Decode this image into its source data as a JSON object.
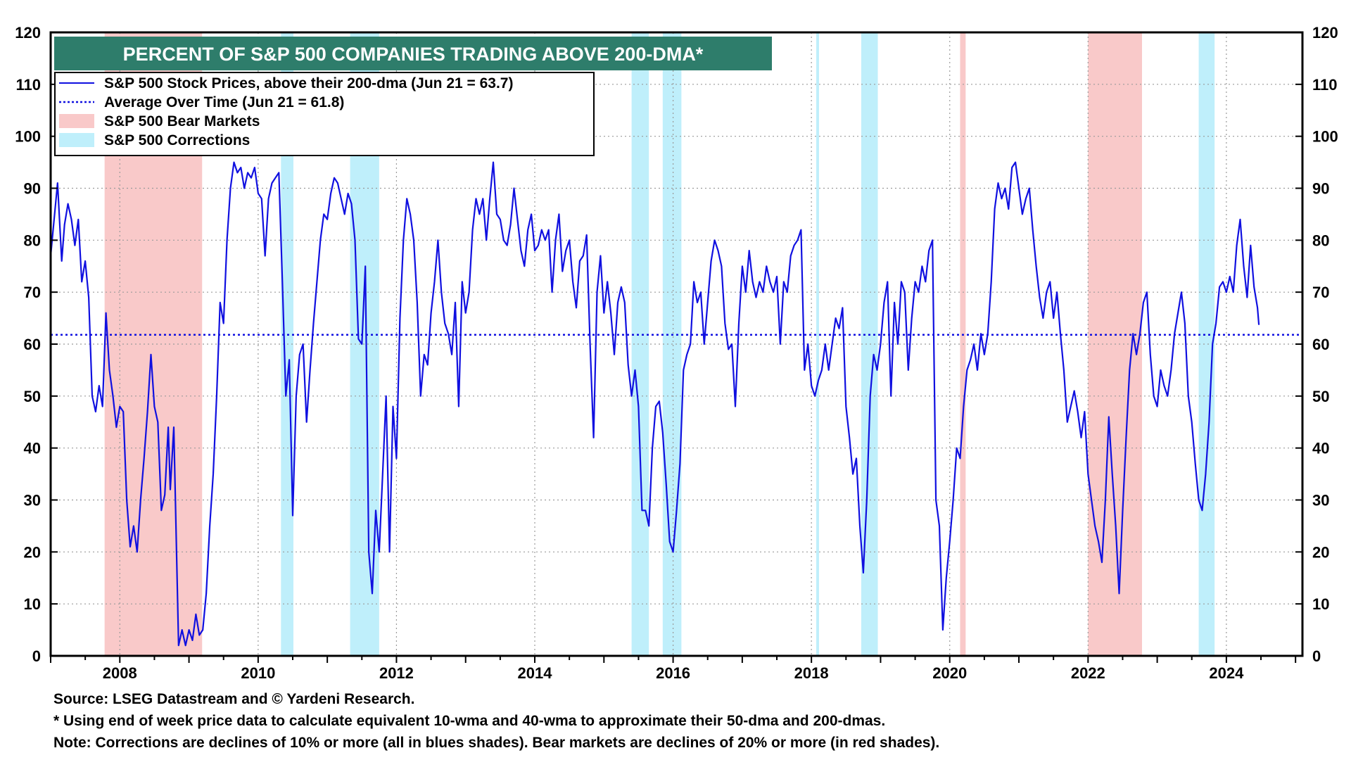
{
  "chart_data": {
    "type": "line",
    "title": "PERCENT OF S&P 500 COMPANIES TRADING ABOVE 200-DMA*",
    "ylim": [
      0,
      120
    ],
    "xlim": [
      2007.0,
      2025.1
    ],
    "y_ticks": [
      0,
      10,
      20,
      30,
      40,
      50,
      60,
      70,
      80,
      90,
      100,
      110,
      120
    ],
    "x_ticks": [
      2008,
      2010,
      2012,
      2014,
      2016,
      2018,
      2020,
      2022,
      2024
    ],
    "grid": true,
    "legend_position": "top-left",
    "legend": [
      {
        "label": "S&P 500 Stock Prices, above their 200-dma (Jun 21 = 63.7)",
        "style": "solid-line",
        "color": "#1010e0"
      },
      {
        "label": "Average Over Time (Jun 21 = 61.8)",
        "style": "dotted-line",
        "color": "#1010e0"
      },
      {
        "label": "S&P 500 Bear Markets",
        "style": "swatch",
        "color": "#f9c9c9"
      },
      {
        "label": "S&P 500 Corrections",
        "style": "swatch",
        "color": "#bfeffb"
      }
    ],
    "average_line": 61.8,
    "bear_markets": [
      [
        2007.78,
        2009.19
      ],
      [
        2020.15,
        2020.23
      ],
      [
        2022.0,
        2022.78
      ]
    ],
    "corrections": [
      [
        2010.33,
        2010.51
      ],
      [
        2011.33,
        2011.75
      ],
      [
        2015.4,
        2015.65
      ],
      [
        2015.85,
        2016.12
      ],
      [
        2018.07,
        2018.11
      ],
      [
        2018.72,
        2018.96
      ],
      [
        2023.6,
        2023.83
      ]
    ],
    "series": [
      {
        "name": "S&P 500 Stock Prices, above their 200-dma",
        "color": "#1010e0",
        "x": [
          2007.0,
          2007.05,
          2007.1,
          2007.16,
          2007.2,
          2007.25,
          2007.3,
          2007.35,
          2007.4,
          2007.45,
          2007.5,
          2007.55,
          2007.6,
          2007.65,
          2007.7,
          2007.75,
          2007.8,
          2007.85,
          2007.9,
          2007.95,
          2008.0,
          2008.05,
          2008.1,
          2008.15,
          2008.2,
          2008.25,
          2008.3,
          2008.35,
          2008.4,
          2008.45,
          2008.5,
          2008.55,
          2008.6,
          2008.65,
          2008.7,
          2008.73,
          2008.78,
          2008.85,
          2008.9,
          2008.95,
          2009.0,
          2009.05,
          2009.1,
          2009.15,
          2009.2,
          2009.25,
          2009.3,
          2009.35,
          2009.4,
          2009.45,
          2009.5,
          2009.55,
          2009.6,
          2009.65,
          2009.7,
          2009.75,
          2009.8,
          2009.85,
          2009.9,
          2009.95,
          2010.0,
          2010.05,
          2010.1,
          2010.15,
          2010.2,
          2010.25,
          2010.3,
          2010.35,
          2010.4,
          2010.45,
          2010.5,
          2010.55,
          2010.6,
          2010.65,
          2010.7,
          2010.75,
          2010.8,
          2010.85,
          2010.9,
          2010.95,
          2011.0,
          2011.05,
          2011.1,
          2011.15,
          2011.2,
          2011.25,
          2011.3,
          2011.35,
          2011.4,
          2011.45,
          2011.5,
          2011.55,
          2011.6,
          2011.65,
          2011.7,
          2011.75,
          2011.8,
          2011.85,
          2011.9,
          2011.95,
          2012.0,
          2012.05,
          2012.1,
          2012.15,
          2012.2,
          2012.25,
          2012.3,
          2012.35,
          2012.4,
          2012.45,
          2012.5,
          2012.55,
          2012.6,
          2012.65,
          2012.7,
          2012.75,
          2012.8,
          2012.85,
          2012.9,
          2012.95,
          2013.0,
          2013.05,
          2013.1,
          2013.15,
          2013.2,
          2013.25,
          2013.3,
          2013.35,
          2013.4,
          2013.45,
          2013.5,
          2013.55,
          2013.6,
          2013.65,
          2013.7,
          2013.75,
          2013.8,
          2013.85,
          2013.9,
          2013.95,
          2014.0,
          2014.05,
          2014.1,
          2014.15,
          2014.2,
          2014.25,
          2014.3,
          2014.35,
          2014.4,
          2014.45,
          2014.5,
          2014.55,
          2014.6,
          2014.65,
          2014.7,
          2014.75,
          2014.8,
          2014.85,
          2014.9,
          2014.95,
          2015.0,
          2015.05,
          2015.1,
          2015.15,
          2015.2,
          2015.25,
          2015.3,
          2015.35,
          2015.4,
          2015.45,
          2015.5,
          2015.55,
          2015.6,
          2015.65,
          2015.7,
          2015.75,
          2015.8,
          2015.85,
          2015.9,
          2015.95,
          2016.0,
          2016.05,
          2016.1,
          2016.15,
          2016.2,
          2016.25,
          2016.3,
          2016.35,
          2016.4,
          2016.45,
          2016.5,
          2016.55,
          2016.6,
          2016.65,
          2016.7,
          2016.75,
          2016.8,
          2016.85,
          2016.9,
          2016.95,
          2017.0,
          2017.05,
          2017.1,
          2017.15,
          2017.2,
          2017.25,
          2017.3,
          2017.35,
          2017.4,
          2017.45,
          2017.5,
          2017.55,
          2017.6,
          2017.65,
          2017.7,
          2017.75,
          2017.8,
          2017.85,
          2017.9,
          2017.95,
          2018.0,
          2018.05,
          2018.1,
          2018.15,
          2018.2,
          2018.25,
          2018.3,
          2018.35,
          2018.4,
          2018.45,
          2018.5,
          2018.55,
          2018.6,
          2018.65,
          2018.7,
          2018.75,
          2018.8,
          2018.85,
          2018.9,
          2018.95,
          2019.0,
          2019.05,
          2019.1,
          2019.15,
          2019.2,
          2019.25,
          2019.3,
          2019.35,
          2019.4,
          2019.45,
          2019.5,
          2019.55,
          2019.6,
          2019.65,
          2019.7,
          2019.75,
          2019.8,
          2019.85,
          2019.9,
          2019.95,
          2020.0,
          2020.05,
          2020.1,
          2020.15,
          2020.2,
          2020.25,
          2020.3,
          2020.35,
          2020.4,
          2020.45,
          2020.5,
          2020.55,
          2020.6,
          2020.65,
          2020.7,
          2020.75,
          2020.8,
          2020.85,
          2020.9,
          2020.95,
          2021.0,
          2021.05,
          2021.1,
          2021.15,
          2021.2,
          2021.25,
          2021.3,
          2021.35,
          2021.4,
          2021.45,
          2021.5,
          2021.55,
          2021.6,
          2021.65,
          2021.7,
          2021.75,
          2021.8,
          2021.85,
          2021.9,
          2021.95,
          2022.0,
          2022.05,
          2022.1,
          2022.15,
          2022.2,
          2022.25,
          2022.3,
          2022.35,
          2022.4,
          2022.45,
          2022.5,
          2022.55,
          2022.6,
          2022.65,
          2022.7,
          2022.75,
          2022.8,
          2022.85,
          2022.9,
          2022.95,
          2023.0,
          2023.05,
          2023.1,
          2023.15,
          2023.2,
          2023.25,
          2023.3,
          2023.35,
          2023.4,
          2023.45,
          2023.5,
          2023.55,
          2023.6,
          2023.65,
          2023.7,
          2023.75,
          2023.8,
          2023.85,
          2023.9,
          2023.95,
          2024.0,
          2024.05,
          2024.1,
          2024.15,
          2024.2,
          2024.25,
          2024.3,
          2024.35,
          2024.4,
          2024.45,
          2024.47
        ],
        "y": [
          77,
          84,
          91,
          76,
          83,
          87,
          84,
          79,
          84,
          72,
          76,
          69,
          50,
          47,
          52,
          48,
          66,
          55,
          50,
          44,
          48,
          47,
          30,
          21,
          25,
          20,
          30,
          38,
          47,
          58,
          48,
          45,
          28,
          31,
          44,
          32,
          44,
          2,
          5,
          2,
          5,
          3,
          8,
          4,
          5,
          12,
          25,
          35,
          50,
          68,
          64,
          80,
          90,
          95,
          93,
          94,
          90,
          93,
          92,
          94,
          89,
          88,
          77,
          88,
          91,
          92,
          93,
          72,
          50,
          57,
          27,
          50,
          58,
          60,
          45,
          55,
          64,
          72,
          80,
          85,
          84,
          89,
          92,
          91,
          88,
          85,
          89,
          87,
          80,
          61,
          60,
          75,
          20,
          12,
          28,
          20,
          35,
          50,
          20,
          48,
          38,
          65,
          80,
          88,
          85,
          80,
          68,
          50,
          58,
          56,
          66,
          72,
          80,
          70,
          64,
          62,
          58,
          68,
          48,
          72,
          66,
          70,
          82,
          88,
          85,
          88,
          80,
          88,
          95,
          85,
          84,
          80,
          79,
          83,
          90,
          84,
          78,
          75,
          82,
          85,
          78,
          79,
          82,
          80,
          82,
          70,
          80,
          85,
          74,
          78,
          80,
          72,
          67,
          76,
          77,
          81,
          60,
          42,
          70,
          77,
          66,
          72,
          66,
          58,
          68,
          71,
          68,
          56,
          50,
          55,
          48,
          28,
          28,
          25,
          40,
          48,
          49,
          43,
          33,
          22,
          20,
          28,
          37,
          55,
          58,
          60,
          72,
          68,
          70,
          60,
          68,
          76,
          80,
          78,
          75,
          64,
          59,
          60,
          48,
          64,
          75,
          70,
          78,
          72,
          69,
          72,
          70,
          75,
          72,
          70,
          73,
          60,
          72,
          70,
          77,
          79,
          80,
          82,
          55,
          60,
          52,
          50,
          53,
          55,
          60,
          55,
          60,
          65,
          63,
          67,
          48,
          42,
          35,
          38,
          25,
          16,
          30,
          50,
          58,
          55,
          60,
          68,
          72,
          50,
          68,
          60,
          72,
          70,
          55,
          65,
          72,
          70,
          75,
          72,
          78,
          80,
          30,
          25,
          5,
          15,
          22,
          30,
          40,
          38,
          48,
          55,
          57,
          60,
          55,
          62,
          58,
          62,
          72,
          86,
          91,
          88,
          90,
          86,
          94,
          95,
          90,
          85,
          88,
          90,
          82,
          75,
          69,
          65,
          70,
          72,
          65,
          70,
          62,
          55,
          45,
          48,
          51,
          47,
          42,
          47,
          35,
          30,
          25,
          22,
          18,
          30,
          46,
          35,
          25,
          12,
          28,
          42,
          55,
          62,
          58,
          62,
          68,
          70,
          58,
          50,
          48,
          55,
          52,
          50,
          55,
          62,
          66,
          70,
          64,
          50,
          45,
          37,
          30,
          28,
          35,
          45,
          60,
          64,
          71,
          72,
          70,
          73,
          70,
          79,
          84,
          75,
          69,
          79,
          71,
          67,
          63.7
        ]
      }
    ]
  },
  "axes": {
    "y_left_labels": [
      "0",
      "10",
      "20",
      "30",
      "40",
      "50",
      "60",
      "70",
      "80",
      "90",
      "100",
      "110",
      "120"
    ],
    "y_right_labels": [
      "0",
      "10",
      "20",
      "30",
      "40",
      "50",
      "60",
      "70",
      "80",
      "90",
      "100",
      "110",
      "120"
    ],
    "x_labels": [
      "2008",
      "2010",
      "2012",
      "2014",
      "2016",
      "2018",
      "2020",
      "2022",
      "2024"
    ]
  },
  "footnotes": {
    "source": "Source: LSEG Datastream and © Yardeni Research.",
    "method": "* Using end of week price data to calculate equivalent 10-wma and 40-wma to approximate their 50-dma and 200-dmas.",
    "note": "Note: Corrections are declines of 10% or more (all in blues shades). Bear markets are declines of 20% or more (in red shades)."
  },
  "colors": {
    "title_bg": "#2e7d6b",
    "line": "#1010e0",
    "bear_shade": "#f9c9c9",
    "correction_shade": "#bfeffb",
    "grid": "#9a9a9a"
  }
}
